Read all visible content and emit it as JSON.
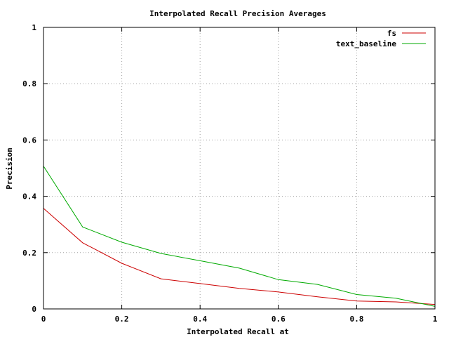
{
  "chart_data": {
    "type": "line",
    "title": "Interpolated Recall Precision Averages",
    "xlabel": "Interpolated Recall at",
    "ylabel": "Precision",
    "xlim": [
      0,
      1
    ],
    "ylim": [
      0,
      1
    ],
    "x_ticks": [
      0,
      0.2,
      0.4,
      0.6,
      0.8,
      1
    ],
    "x_tick_labels": [
      "0",
      "0.2",
      "0.4",
      "0.6",
      "0.8",
      "1"
    ],
    "y_ticks": [
      0,
      0.2,
      0.4,
      0.6,
      0.8,
      1
    ],
    "y_tick_labels": [
      "0",
      "0.2",
      "0.4",
      "0.6",
      "0.8",
      "1"
    ],
    "grid": true,
    "legend_position": "top-right",
    "x": [
      0,
      0.1,
      0.2,
      0.3,
      0.4,
      0.5,
      0.6,
      0.7,
      0.8,
      0.9,
      1.0
    ],
    "series": [
      {
        "name": "fs",
        "color": "#cc0000",
        "values": [
          0.357,
          0.235,
          0.162,
          0.107,
          0.09,
          0.073,
          0.06,
          0.043,
          0.028,
          0.025,
          0.016
        ]
      },
      {
        "name": "text_baseline",
        "color": "#00aa00",
        "values": [
          0.507,
          0.291,
          0.237,
          0.197,
          0.171,
          0.145,
          0.104,
          0.087,
          0.051,
          0.038,
          0.009
        ]
      }
    ]
  }
}
